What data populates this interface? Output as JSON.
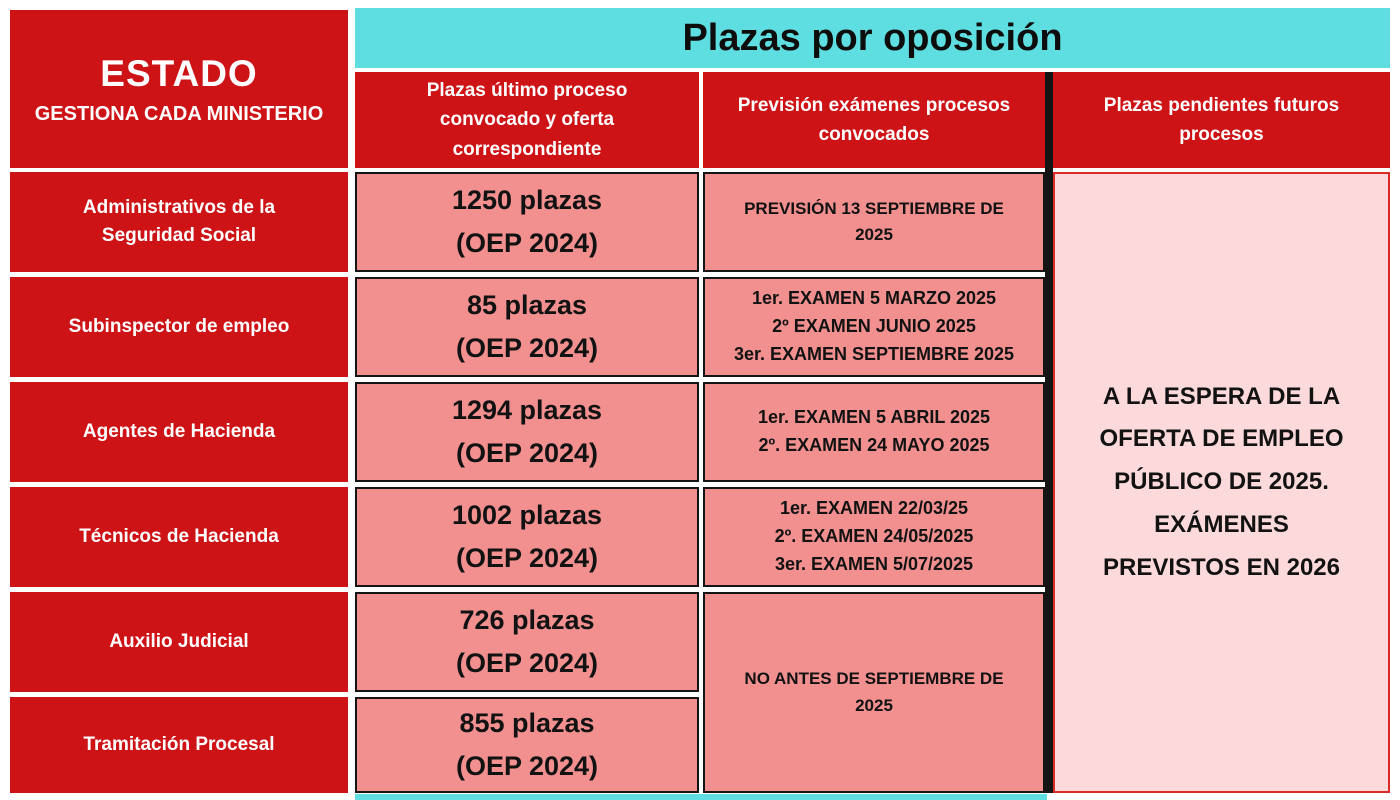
{
  "colors": {
    "red": "#cd1316",
    "cyan": "#5edee0",
    "salmon": "#f1908f",
    "pink": "#fcd9da",
    "pink_border": "#db2b27",
    "border_dark": "#141414"
  },
  "header": {
    "estado_title": "ESTADO",
    "estado_subtitle": "GESTIONA CADA MINISTERIO",
    "banner": "Plazas por oposición",
    "col_headers": [
      "Plazas último proceso convocado y oferta correspondiente",
      "Previsión exámenes procesos convocados",
      "Plazas pendientes futuros procesos"
    ]
  },
  "rows": [
    {
      "name": "Administrativos de la Seguridad Social",
      "plazas": "1250 plazas",
      "oep": "(OEP 2024)",
      "exams": [
        "PREVISIÓN 13 SEPTIEMBRE DE 2025"
      ]
    },
    {
      "name": "Subinspector de empleo",
      "plazas": "85 plazas",
      "oep": "(OEP 2024)",
      "exams": [
        "1er. EXAMEN 5 MARZO 2025",
        "2º EXAMEN JUNIO 2025",
        "3er. EXAMEN SEPTIEMBRE 2025"
      ]
    },
    {
      "name": "Agentes de Hacienda",
      "plazas": "1294 plazas",
      "oep": "(OEP 2024)",
      "exams": [
        "1er. EXAMEN 5 ABRIL 2025",
        "2º. EXAMEN 24 MAYO 2025"
      ]
    },
    {
      "name": "Técnicos de Hacienda",
      "plazas": "1002 plazas",
      "oep": "(OEP 2024)",
      "exams": [
        "1er. EXAMEN 22/03/25",
        "2º. EXAMEN 24/05/2025",
        "3er. EXAMEN 5/07/2025"
      ]
    },
    {
      "name": "Auxilio Judicial",
      "plazas": "726 plazas",
      "oep": "(OEP 2024)",
      "exams": []
    },
    {
      "name": "Tramitación Procesal",
      "plazas": "855 plazas",
      "oep": "(OEP 2024)",
      "exams": []
    }
  ],
  "merged": {
    "exams_rows_5_6": "NO ANTES DE SEPTIEMBRE DE 2025",
    "pending": "A LA ESPERA DE LA OFERTA DE EMPLEO PÚBLICO DE 2025. EXÁMENES PREVISTOS EN 2026"
  },
  "chart_data": {
    "type": "table",
    "title": "Plazas por oposición",
    "columns": [
      "ESTADO - GESTIONA CADA MINISTERIO",
      "Plazas último proceso convocado y oferta correspondiente",
      "Previsión exámenes procesos convocados",
      "Plazas pendientes futuros procesos"
    ],
    "rows": [
      [
        "Administrativos de la Seguridad Social",
        "1250 plazas (OEP 2024)",
        "PREVISIÓN 13 SEPTIEMBRE DE 2025",
        "A LA ESPERA DE LA OFERTA DE EMPLEO PÚBLICO DE 2025. EXÁMENES PREVISTOS EN 2026"
      ],
      [
        "Subinspector de empleo",
        "85 plazas (OEP 2024)",
        "1er. EXAMEN 5 MARZO 2025; 2º EXAMEN JUNIO 2025; 3er. EXAMEN SEPTIEMBRE 2025",
        "A LA ESPERA DE LA OFERTA DE EMPLEO PÚBLICO DE 2025. EXÁMENES PREVISTOS EN 2026"
      ],
      [
        "Agentes de Hacienda",
        "1294 plazas (OEP 2024)",
        "1er. EXAMEN 5 ABRIL 2025; 2º. EXAMEN 24 MAYO 2025",
        "A LA ESPERA DE LA OFERTA DE EMPLEO PÚBLICO DE 2025. EXÁMENES PREVISTOS EN 2026"
      ],
      [
        "Técnicos de Hacienda",
        "1002 plazas (OEP 2024)",
        "1er. EXAMEN 22/03/25; 2º. EXAMEN 24/05/2025; 3er. EXAMEN 5/07/2025",
        "A LA ESPERA DE LA OFERTA DE EMPLEO PÚBLICO DE 2025. EXÁMENES PREVISTOS EN 2026"
      ],
      [
        "Auxilio Judicial",
        "726 plazas (OEP 2024)",
        "NO ANTES DE SEPTIEMBRE DE 2025",
        "A LA ESPERA DE LA OFERTA DE EMPLEO PÚBLICO DE 2025. EXÁMENES PREVISTOS EN 2026"
      ],
      [
        "Tramitación Procesal",
        "855 plazas (OEP 2024)",
        "NO ANTES DE SEPTIEMBRE DE 2025",
        "A LA ESPERA DE LA OFERTA DE EMPLEO PÚBLICO DE 2025. EXÁMENES PREVISTOS EN 2026"
      ]
    ]
  }
}
